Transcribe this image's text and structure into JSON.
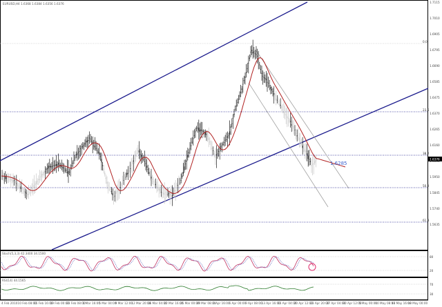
{
  "colors": {
    "channel": "#1a1a8c",
    "fib_level": "#1a1a8c",
    "fib_top": "#b0b0b0",
    "ma": "#b02020",
    "candle_dark": "#1a1a1a",
    "candle_light": "#c8c8c8",
    "wedge": "#a0a0a0",
    "stoch_main": "#c03060",
    "stoch_signal": "#7070c0",
    "rsi": "#2a7a2a",
    "callout": "#3a5fcd",
    "marker": "#e03070"
  },
  "main_panel": {
    "header": "EURUSD,H4 1.6368 1.6384 1.6356 1.6376",
    "price_labels": [
      "1.7115",
      "1.7010",
      "1.6905",
      "1.6795",
      "1.6690",
      "1.6585",
      "1.6475",
      "1.6370",
      "1.6265",
      "1.6160",
      "1.6055",
      "1.5950",
      "1.5845",
      "1.5740",
      "1.5635"
    ],
    "current_price": "1.6376",
    "fib_labels": {
      "top": "0.0",
      "l1": "23.6",
      "l2": "38.2",
      "l3": "50.0",
      "l4": "61.8"
    },
    "callout": "1.6285"
  },
  "stoch_panel": {
    "header": "Stoch(5,3,3) 42.3400 34.1500",
    "scale": [
      "80",
      "20"
    ]
  },
  "rsi_panel": {
    "header": "RSI(14) 44.1565",
    "scale": [
      "70",
      "30"
    ]
  },
  "time_axis": [
    "4 Feb 2010",
    "10 Feb 08:00",
    "15 Feb 16:00",
    "19 Feb 00:00",
    "23 Feb 08:00",
    "1 Mar 16:00",
    "5 Mar 04:00",
    "9 Mar 12:00",
    "12 Mar 20:00",
    "16 Mar 04:00",
    "22 Mar 16:00",
    "25 Mar 00:00",
    "29 Mar 08:00",
    "2 Apr 16:00",
    "6 Apr 00:00",
    "9 Apr 08:00",
    "13 Apr 16:00",
    "16 Apr 04:00",
    "20 Apr 12:00",
    "23 Apr 20:00",
    "27 Apr 04:00",
    "30 Apr 12:00",
    "5 May 00:00",
    "10 May 08:00",
    "13 May 16:00",
    "18 May 00:00"
  ],
  "chart_data": {
    "type": "candlestick",
    "series": [
      {
        "name": "EURUSD,H4"
      },
      {
        "name": "MA"
      },
      {
        "name": "Stoch(5,3,3)"
      },
      {
        "name": "RSI(14)"
      }
    ]
  }
}
